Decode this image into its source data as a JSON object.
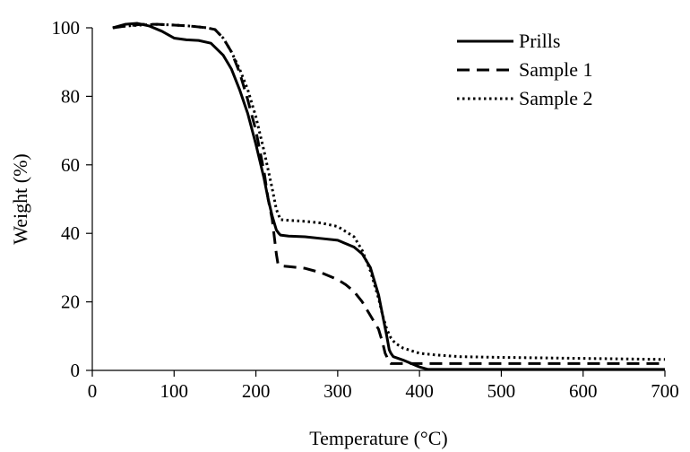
{
  "chart_data": {
    "type": "line",
    "xlabel": "Temperature (°C)",
    "ylabel": "Weight (%)",
    "xlim": [
      0,
      700
    ],
    "ylim": [
      0,
      100
    ],
    "xticks": [
      0,
      100,
      200,
      300,
      400,
      500,
      600,
      700
    ],
    "yticks": [
      0,
      20,
      40,
      60,
      80,
      100
    ],
    "grid": false,
    "legend_position": "top-right",
    "series": [
      {
        "name": "Prills",
        "style": "solid",
        "color": "#000000",
        "x": [
          25,
          40,
          55,
          70,
          85,
          100,
          115,
          130,
          145,
          160,
          170,
          180,
          190,
          200,
          210,
          215,
          220,
          225,
          228,
          230,
          240,
          260,
          280,
          300,
          320,
          330,
          340,
          350,
          355,
          360,
          363,
          365,
          368,
          380,
          400,
          410,
          450,
          500,
          600,
          700
        ],
        "y": [
          100,
          101,
          101.3,
          100.5,
          99,
          97,
          96.5,
          96.3,
          95.5,
          92,
          88,
          82,
          75,
          66,
          56,
          50,
          45,
          41,
          40,
          39.5,
          39.2,
          39,
          38.5,
          38,
          36,
          34,
          30,
          22,
          16,
          10,
          6,
          5,
          4,
          3,
          1,
          0.3,
          0.3,
          0.3,
          0.3,
          0.3
        ]
      },
      {
        "name": "Sample 1",
        "style": "dashed",
        "color": "#000000",
        "x": [
          25,
          40,
          60,
          80,
          100,
          120,
          140,
          150,
          160,
          170,
          180,
          190,
          200,
          210,
          215,
          220,
          223,
          225,
          227,
          230,
          240,
          260,
          280,
          300,
          310,
          320,
          330,
          340,
          350,
          355,
          358,
          360,
          362,
          365,
          380,
          400,
          450,
          500,
          600,
          700
        ],
        "y": [
          100,
          100.5,
          101,
          101,
          100.8,
          100.5,
          100,
          99.5,
          97,
          93,
          87,
          79,
          70,
          58,
          50,
          44,
          38,
          34,
          31,
          30.5,
          30.3,
          29.8,
          28.5,
          26.5,
          25,
          23,
          20,
          16,
          12,
          8,
          5,
          4,
          2.5,
          2,
          2,
          2,
          2,
          2,
          2,
          2
        ]
      },
      {
        "name": "Sample 2",
        "style": "dotted",
        "color": "#000000",
        "x": [
          25,
          40,
          60,
          80,
          100,
          120,
          140,
          150,
          160,
          170,
          180,
          190,
          200,
          210,
          220,
          225,
          230,
          240,
          260,
          280,
          300,
          320,
          330,
          340,
          350,
          355,
          360,
          365,
          370,
          380,
          400,
          420,
          450,
          500,
          600,
          700
        ],
        "y": [
          100,
          100.5,
          100.8,
          101,
          100.8,
          100.5,
          100,
          99.5,
          97,
          93,
          88,
          82,
          74,
          64,
          53,
          47,
          44,
          43.8,
          43.5,
          43,
          42,
          39,
          35,
          29,
          21,
          16,
          12,
          9.5,
          8,
          6.5,
          5,
          4.5,
          4,
          3.8,
          3.5,
          3.2
        ]
      }
    ]
  }
}
